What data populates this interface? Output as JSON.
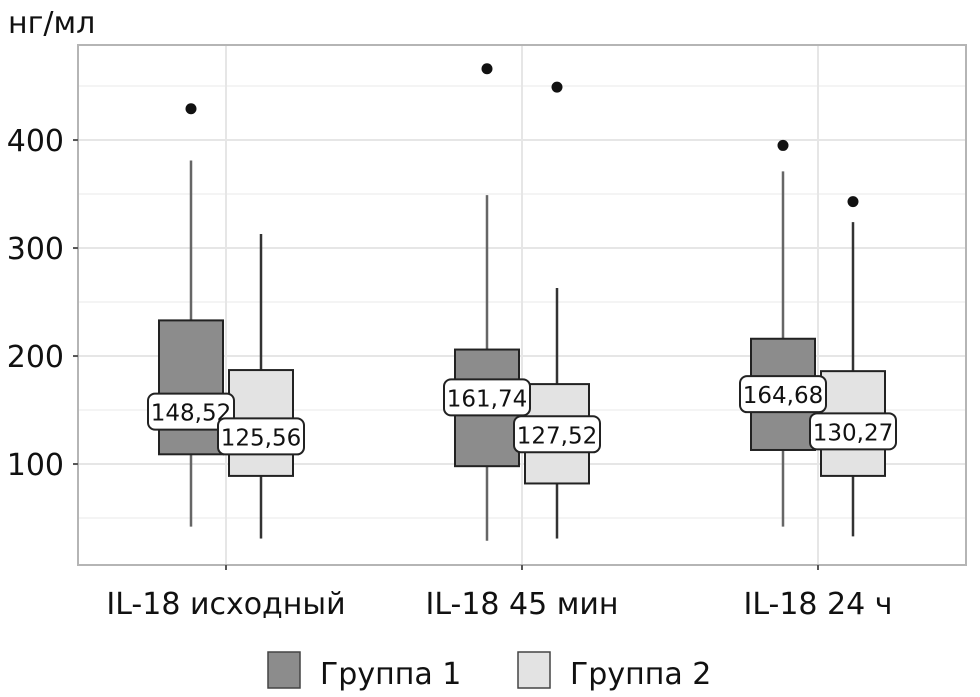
{
  "chart_data": {
    "type": "boxplot",
    "title": "",
    "ylabel": "нг/мл",
    "xlabel": "",
    "ylim": [
      6.5,
      488
    ],
    "yticks": [
      100,
      200,
      300,
      400
    ],
    "ytick_labels": [
      "100",
      "200",
      "300",
      "400"
    ],
    "grid": true,
    "minor_grid": [
      50,
      150,
      250,
      350,
      450
    ],
    "categories": [
      "IL-18 исходный",
      "IL-18 45 мин",
      "IL-18 24 ч"
    ],
    "legend_position": "bottom",
    "series": [
      {
        "name": "Группа 1",
        "color": "#8c8c8c",
        "boxes": [
          {
            "whisker_low": 42,
            "q1": 109,
            "q3": 233,
            "whisker_high": 381,
            "outliers": [
              429
            ],
            "label": "148,52",
            "label_value": 148.52
          },
          {
            "whisker_low": 29,
            "q1": 98,
            "q3": 206,
            "whisker_high": 349,
            "outliers": [
              466
            ],
            "label": "161,74",
            "label_value": 161.74
          },
          {
            "whisker_low": 42,
            "q1": 113,
            "q3": 216,
            "whisker_high": 371,
            "outliers": [
              395
            ],
            "label": "164,68",
            "label_value": 164.68
          }
        ]
      },
      {
        "name": "Группа 2",
        "color": "#e3e3e3",
        "boxes": [
          {
            "whisker_low": 31,
            "q1": 89,
            "q3": 187,
            "whisker_high": 313,
            "outliers": [],
            "label": "125,56",
            "label_value": 125.56
          },
          {
            "whisker_low": 31,
            "q1": 82,
            "q3": 174,
            "whisker_high": 263,
            "outliers": [
              449
            ],
            "label": "127,52",
            "label_value": 127.52
          },
          {
            "whisker_low": 33,
            "q1": 89,
            "q3": 186,
            "whisker_high": 324,
            "outliers": [
              343
            ],
            "label": "130,27",
            "label_value": 130.27
          }
        ]
      }
    ]
  },
  "colors": {
    "grid": "#e6e6e6",
    "frame": "#b5b5b5",
    "outline": "#222222"
  }
}
